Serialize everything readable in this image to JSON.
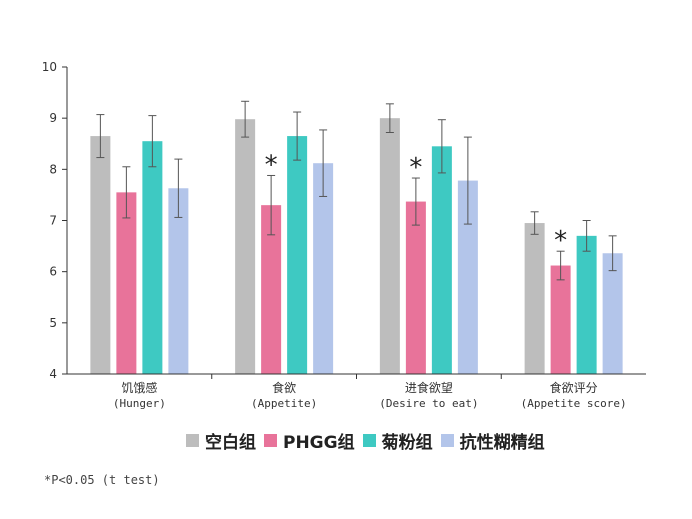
{
  "chart_data": {
    "type": "bar",
    "ylim": [
      4,
      10
    ],
    "yticks": [
      4,
      5,
      6,
      7,
      8,
      9,
      10
    ],
    "categories": [
      {
        "label": "饥饿感",
        "sublabel": "(Hunger)"
      },
      {
        "label": "食欲",
        "sublabel": "(Appetite)"
      },
      {
        "label": "进食欲望",
        "sublabel": "(Desire to eat)"
      },
      {
        "label": "食欲评分",
        "sublabel": "(Appetite score)"
      }
    ],
    "series": [
      {
        "name": "空白组",
        "color": "#bdbdbd",
        "values": [
          8.65,
          8.98,
          9.0,
          6.95
        ],
        "errors": [
          0.42,
          0.35,
          0.28,
          0.22
        ]
      },
      {
        "name": "PHGG组",
        "color": "#e8739a",
        "values": [
          7.55,
          7.3,
          7.37,
          6.12
        ],
        "errors": [
          0.5,
          0.58,
          0.46,
          0.28
        ]
      },
      {
        "name": "菊粉组",
        "color": "#3ec9c2",
        "values": [
          8.55,
          8.65,
          8.45,
          6.7
        ],
        "errors": [
          0.5,
          0.47,
          0.52,
          0.3
        ]
      },
      {
        "name": "抗性糊精组",
        "color": "#b3c5ea",
        "values": [
          7.63,
          8.12,
          7.78,
          6.36
        ],
        "errors": [
          0.57,
          0.65,
          0.85,
          0.34
        ]
      }
    ],
    "significance": {
      "marker": "*",
      "series": "PHGG组",
      "categories": [
        1,
        2,
        3
      ]
    },
    "footnote": "*P<0.05 (t test)",
    "legend_position": "bottom"
  }
}
